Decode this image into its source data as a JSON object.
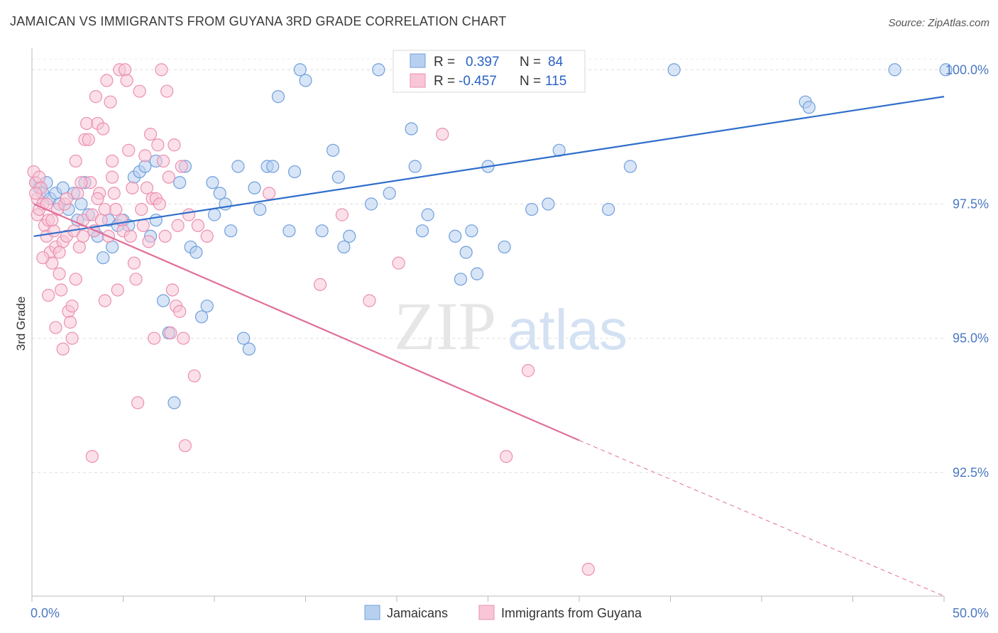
{
  "title": "JAMAICAN VS IMMIGRANTS FROM GUYANA 3RD GRADE CORRELATION CHART",
  "source": "Source: ZipAtlas.com",
  "watermark": {
    "zip": "ZIP",
    "atlas": "atlas"
  },
  "chart_data": {
    "type": "scatter",
    "xlabel": "",
    "ylabel": "3rd Grade",
    "xlim": [
      0,
      50
    ],
    "ylim": [
      90.2,
      100.4
    ],
    "x_tick_labels": [
      "0.0%",
      "50.0%"
    ],
    "y_ticks": [
      92.5,
      95.0,
      97.5,
      100.0
    ],
    "y_tick_labels": [
      "92.5%",
      "95.0%",
      "97.5%",
      "100.0%"
    ],
    "grid": true,
    "legend_position": "top-center",
    "legend": [
      {
        "r_label": "R =",
        "r_value": "0.397",
        "n_label": "N =",
        "n_value": "84"
      },
      {
        "r_label": "R =",
        "r_value": "-0.457",
        "n_label": "N =",
        "n_value": "115"
      }
    ],
    "series": [
      {
        "name": "Jamaicans",
        "color": "#6f9fdc",
        "fill": "#b8d0f0",
        "trend": {
          "x": [
            0.1,
            50
          ],
          "y": [
            96.9,
            99.5
          ],
          "color": "#2f6ecb"
        },
        "points": [
          [
            0.2,
            97.9
          ],
          [
            0.4,
            97.8
          ],
          [
            0.6,
            97.7
          ],
          [
            0.8,
            97.9
          ],
          [
            1.0,
            97.6
          ],
          [
            1.3,
            97.7
          ],
          [
            1.5,
            97.5
          ],
          [
            1.7,
            97.8
          ],
          [
            2.0,
            97.4
          ],
          [
            2.3,
            97.7
          ],
          [
            2.5,
            97.2
          ],
          [
            2.7,
            97.5
          ],
          [
            3.1,
            97.3
          ],
          [
            3.4,
            97.0
          ],
          [
            3.6,
            96.9
          ],
          [
            3.9,
            96.5
          ],
          [
            4.2,
            97.2
          ],
          [
            4.4,
            96.7
          ],
          [
            4.7,
            97.1
          ],
          [
            5.0,
            97.2
          ],
          [
            5.3,
            97.1
          ],
          [
            5.6,
            98.0
          ],
          [
            5.9,
            98.1
          ],
          [
            6.2,
            98.2
          ],
          [
            6.5,
            96.9
          ],
          [
            6.8,
            97.2
          ],
          [
            7.2,
            95.7
          ],
          [
            7.5,
            95.1
          ],
          [
            7.8,
            93.8
          ],
          [
            8.1,
            97.9
          ],
          [
            8.4,
            98.2
          ],
          [
            8.7,
            96.7
          ],
          [
            9.0,
            96.6
          ],
          [
            9.3,
            95.4
          ],
          [
            9.6,
            95.6
          ],
          [
            9.9,
            97.9
          ],
          [
            10.3,
            97.7
          ],
          [
            10.6,
            97.5
          ],
          [
            10.9,
            97.0
          ],
          [
            11.3,
            98.2
          ],
          [
            11.6,
            95.0
          ],
          [
            11.9,
            94.8
          ],
          [
            12.2,
            97.8
          ],
          [
            12.5,
            97.4
          ],
          [
            12.9,
            98.2
          ],
          [
            13.2,
            98.2
          ],
          [
            13.5,
            99.5
          ],
          [
            14.1,
            97.0
          ],
          [
            14.4,
            98.1
          ],
          [
            14.7,
            100.0
          ],
          [
            15.0,
            99.8
          ],
          [
            15.9,
            97.0
          ],
          [
            16.5,
            98.5
          ],
          [
            16.8,
            98.0
          ],
          [
            17.1,
            96.7
          ],
          [
            17.4,
            96.9
          ],
          [
            18.6,
            97.5
          ],
          [
            19.0,
            100.0
          ],
          [
            19.6,
            97.7
          ],
          [
            20.8,
            98.9
          ],
          [
            21.4,
            97.0
          ],
          [
            21.7,
            97.3
          ],
          [
            22.6,
            100.0
          ],
          [
            23.2,
            96.9
          ],
          [
            23.5,
            96.1
          ],
          [
            23.8,
            96.6
          ],
          [
            24.1,
            97.0
          ],
          [
            24.4,
            96.2
          ],
          [
            25.0,
            98.2
          ],
          [
            25.9,
            96.7
          ],
          [
            27.4,
            97.4
          ],
          [
            28.3,
            97.5
          ],
          [
            28.9,
            98.5
          ],
          [
            31.6,
            97.4
          ],
          [
            32.8,
            98.2
          ],
          [
            35.2,
            100.0
          ],
          [
            42.4,
            99.4
          ],
          [
            42.6,
            99.3
          ],
          [
            47.3,
            100.0
          ],
          [
            50.1,
            100.0
          ],
          [
            2.9,
            97.9
          ],
          [
            6.8,
            98.3
          ],
          [
            10.0,
            97.3
          ],
          [
            21.0,
            98.2
          ]
        ]
      },
      {
        "name": "Immigrants from Guyana",
        "color": "#ec8fb0",
        "fill": "#f8c6d7",
        "trend": {
          "x": [
            0.1,
            30
          ],
          "y": [
            97.5,
            93.1
          ],
          "color": "#e06f9b"
        },
        "trend_dashed": {
          "x": [
            30,
            50
          ],
          "y": [
            93.1,
            90.2
          ]
        },
        "points": [
          [
            0.1,
            98.1
          ],
          [
            0.2,
            97.9
          ],
          [
            0.3,
            97.6
          ],
          [
            0.3,
            97.3
          ],
          [
            0.4,
            98.0
          ],
          [
            0.5,
            97.8
          ],
          [
            0.6,
            97.5
          ],
          [
            0.7,
            97.1
          ],
          [
            0.8,
            96.9
          ],
          [
            0.9,
            97.2
          ],
          [
            1.0,
            96.6
          ],
          [
            1.1,
            96.4
          ],
          [
            1.2,
            97.0
          ],
          [
            1.3,
            96.7
          ],
          [
            1.4,
            97.4
          ],
          [
            1.5,
            96.2
          ],
          [
            1.6,
            95.9
          ],
          [
            1.7,
            96.8
          ],
          [
            1.8,
            97.5
          ],
          [
            1.9,
            96.9
          ],
          [
            2.0,
            95.5
          ],
          [
            2.1,
            95.3
          ],
          [
            2.2,
            95.6
          ],
          [
            2.3,
            97.0
          ],
          [
            2.4,
            98.3
          ],
          [
            2.5,
            97.7
          ],
          [
            2.6,
            96.7
          ],
          [
            2.8,
            97.2
          ],
          [
            2.9,
            98.7
          ],
          [
            3.0,
            99.0
          ],
          [
            3.1,
            98.7
          ],
          [
            3.2,
            97.9
          ],
          [
            3.3,
            97.3
          ],
          [
            3.4,
            97.0
          ],
          [
            3.5,
            99.5
          ],
          [
            3.6,
            99.0
          ],
          [
            3.7,
            97.7
          ],
          [
            3.8,
            97.2
          ],
          [
            3.9,
            98.9
          ],
          [
            4.0,
            97.4
          ],
          [
            4.1,
            99.8
          ],
          [
            4.2,
            96.9
          ],
          [
            4.3,
            99.4
          ],
          [
            4.4,
            98.3
          ],
          [
            4.5,
            97.7
          ],
          [
            4.6,
            97.4
          ],
          [
            4.7,
            95.9
          ],
          [
            4.8,
            100.0
          ],
          [
            4.9,
            97.2
          ],
          [
            5.0,
            97.0
          ],
          [
            5.1,
            100.0
          ],
          [
            5.2,
            99.8
          ],
          [
            5.3,
            98.5
          ],
          [
            5.4,
            96.9
          ],
          [
            5.5,
            97.8
          ],
          [
            5.6,
            96.4
          ],
          [
            5.7,
            96.1
          ],
          [
            5.8,
            93.8
          ],
          [
            5.9,
            99.6
          ],
          [
            6.0,
            97.4
          ],
          [
            6.1,
            97.1
          ],
          [
            6.2,
            98.4
          ],
          [
            6.3,
            97.8
          ],
          [
            6.4,
            96.8
          ],
          [
            6.5,
            98.8
          ],
          [
            6.6,
            97.6
          ],
          [
            6.7,
            95.0
          ],
          [
            6.8,
            97.6
          ],
          [
            6.9,
            98.6
          ],
          [
            7.0,
            97.5
          ],
          [
            7.1,
            100.0
          ],
          [
            7.2,
            98.3
          ],
          [
            7.3,
            96.9
          ],
          [
            7.4,
            99.6
          ],
          [
            7.5,
            98.0
          ],
          [
            7.6,
            95.1
          ],
          [
            7.7,
            95.9
          ],
          [
            7.8,
            98.6
          ],
          [
            7.9,
            95.6
          ],
          [
            8.0,
            97.1
          ],
          [
            8.1,
            95.5
          ],
          [
            8.2,
            98.2
          ],
          [
            8.3,
            95.0
          ],
          [
            8.4,
            93.0
          ],
          [
            8.6,
            97.3
          ],
          [
            8.9,
            94.3
          ],
          [
            9.1,
            97.1
          ],
          [
            9.6,
            96.9
          ],
          [
            13.0,
            97.7
          ],
          [
            15.8,
            96.0
          ],
          [
            17.0,
            97.3
          ],
          [
            18.5,
            95.7
          ],
          [
            20.1,
            96.4
          ],
          [
            22.5,
            98.8
          ],
          [
            26.0,
            92.8
          ],
          [
            27.2,
            94.4
          ],
          [
            30.5,
            90.7
          ],
          [
            0.6,
            96.5
          ],
          [
            0.9,
            95.8
          ],
          [
            1.3,
            95.2
          ],
          [
            1.7,
            94.8
          ],
          [
            2.2,
            95.0
          ],
          [
            2.7,
            97.9
          ],
          [
            3.3,
            92.8
          ],
          [
            4.0,
            95.7
          ],
          [
            4.4,
            98.0
          ],
          [
            0.2,
            97.7
          ],
          [
            0.4,
            97.4
          ],
          [
            0.8,
            97.5
          ],
          [
            1.1,
            97.2
          ],
          [
            1.5,
            96.6
          ],
          [
            1.9,
            97.6
          ],
          [
            2.4,
            96.1
          ],
          [
            2.8,
            96.9
          ],
          [
            3.6,
            97.6
          ]
        ]
      }
    ]
  },
  "bottom_legend": [
    {
      "label": "Jamaicans",
      "color": "#b8d0f0",
      "stroke": "#6f9fdc"
    },
    {
      "label": "Immigrants from Guyana",
      "color": "#f8c6d7",
      "stroke": "#ec8fb0"
    }
  ]
}
